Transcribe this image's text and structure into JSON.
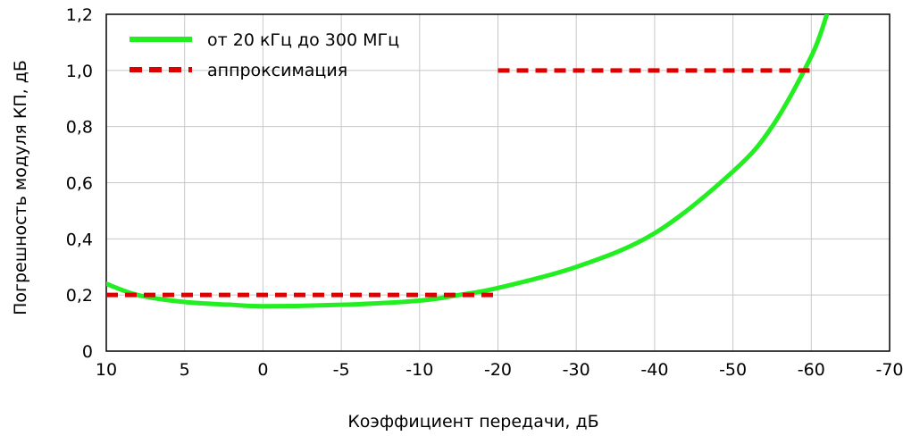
{
  "chart_data": {
    "type": "line",
    "xlabel": "Коэффициент передачи, дБ",
    "ylabel": "Погрешность модуля  КП, дБ",
    "x_tick_labels": [
      "10",
      "5",
      "0",
      "-5",
      "-10",
      "-20",
      "-30",
      "-40",
      "-50",
      "-60",
      "-70"
    ],
    "y_tick_labels": [
      "0",
      "0,2",
      "0,4",
      "0,6",
      "0,8",
      "1,0",
      "1,2"
    ],
    "ylim": [
      0,
      1.2
    ],
    "grid": true,
    "legend_position": "top-left",
    "series": [
      {
        "name": "от 20 кГц до 300 МГц",
        "style": "solid",
        "color": "#22ee22",
        "x": [
          "10",
          "8",
          "5",
          "2",
          "0",
          "-5",
          "-10",
          "-15",
          "-20",
          "-30",
          "-40",
          "-50",
          "-55",
          "-60",
          "-62"
        ],
        "y": [
          0.24,
          0.2,
          0.175,
          0.165,
          0.16,
          0.165,
          0.18,
          0.2,
          0.225,
          0.3,
          0.42,
          0.64,
          0.8,
          1.05,
          1.2
        ]
      },
      {
        "name": "аппроксимация",
        "style": "dashed",
        "color": "#dd0000",
        "segments": [
          {
            "x": [
              "10",
              "-20"
            ],
            "y": [
              0.2,
              0.2
            ]
          },
          {
            "x": [
              "-20",
              "-60"
            ],
            "y": [
              1.0,
              1.0
            ]
          }
        ]
      }
    ]
  }
}
